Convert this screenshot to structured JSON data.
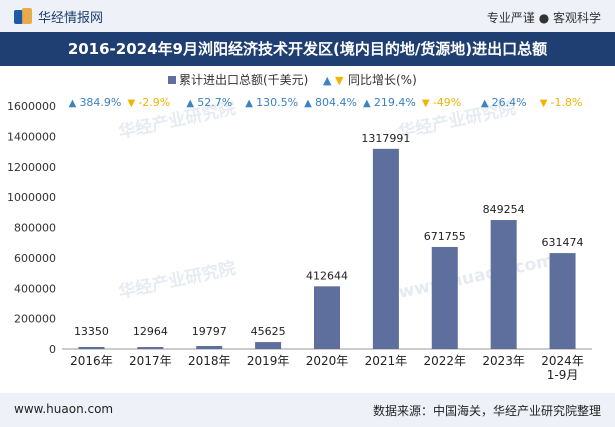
{
  "header": {
    "brand": "华经情报网",
    "tagline": "专业严谨 ● 客观科学",
    "logo_icon": "huajing-logo-icon"
  },
  "chart_data": {
    "type": "bar",
    "title": "2016-2024年9月浏阳经济技术开发区(境内目的地/货源地)进出口总额",
    "categories": [
      "2016年",
      "2017年",
      "2018年",
      "2019年",
      "2020年",
      "2021年",
      "2022年",
      "2023年",
      "2024年\n1-9月"
    ],
    "series": [
      {
        "name": "累计进出口总额(千美元)",
        "values": [
          13350,
          12964,
          19797,
          45625,
          412644,
          1317991,
          671755,
          849254,
          631474
        ],
        "labels": [
          "13350",
          "12964",
          "19797",
          "45625",
          "412644",
          "1317991",
          "671755",
          "849254",
          "631474"
        ]
      },
      {
        "name": "同比增长(%)",
        "values": [
          384.9,
          -2.9,
          52.7,
          130.5,
          804.4,
          219.4,
          -49,
          26.4,
          -1.8
        ],
        "labels": [
          "384.9%",
          "-2.9%",
          "52.7%",
          "130.5%",
          "804.4%",
          "219.4%",
          "-49%",
          "26.4%",
          "-1.8%"
        ]
      }
    ],
    "ylim": [
      0,
      1600000
    ],
    "yticks": [
      "0",
      "200000",
      "400000",
      "600000",
      "800000",
      "1000000",
      "1200000",
      "1400000",
      "1600000"
    ],
    "legend_position": "top-center",
    "grid": false,
    "colors": {
      "bar": "#5e6f9e",
      "up": "#3a82c4",
      "down": "#f0b400"
    }
  },
  "watermarks": [
    "华经产业研究院",
    "华经产业研究院",
    "华经产业研究院",
    "www.huaon.com"
  ],
  "footer": {
    "url": "www.huaon.com",
    "source": "数据来源：中国海关，华经产业研究院整理"
  }
}
